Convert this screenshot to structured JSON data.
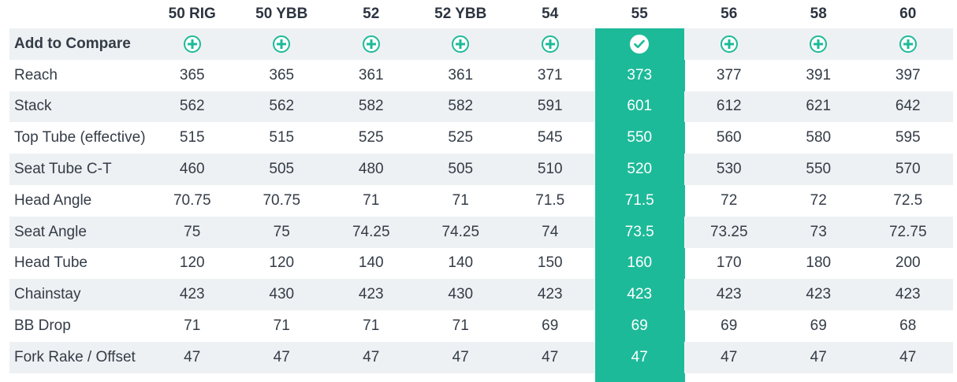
{
  "sizes": [
    "50 RIG",
    "50 YBB",
    "52",
    "52 YBB",
    "54",
    "55",
    "56",
    "58",
    "60"
  ],
  "selected_size": "55",
  "accent_color": "#1dba99",
  "compare": {
    "label": "Add to Compare",
    "add_icon": "plus-circle-icon",
    "selected_icon": "check-circle-icon"
  },
  "rows": [
    {
      "label": "Reach",
      "values": [
        "365",
        "365",
        "361",
        "361",
        "371",
        "373",
        "377",
        "391",
        "397"
      ]
    },
    {
      "label": "Stack",
      "values": [
        "562",
        "562",
        "582",
        "582",
        "591",
        "601",
        "612",
        "621",
        "642"
      ]
    },
    {
      "label": "Top Tube (effective)",
      "values": [
        "515",
        "515",
        "525",
        "525",
        "545",
        "550",
        "560",
        "580",
        "595"
      ]
    },
    {
      "label": "Seat Tube C-T",
      "values": [
        "460",
        "505",
        "480",
        "505",
        "510",
        "520",
        "530",
        "550",
        "570"
      ]
    },
    {
      "label": "Head Angle",
      "values": [
        "70.75",
        "70.75",
        "71",
        "71",
        "71.5",
        "71.5",
        "72",
        "72",
        "72.5"
      ]
    },
    {
      "label": "Seat Angle",
      "values": [
        "75",
        "75",
        "74.25",
        "74.25",
        "74",
        "73.5",
        "73.25",
        "73",
        "72.75"
      ]
    },
    {
      "label": "Head Tube",
      "values": [
        "120",
        "120",
        "140",
        "140",
        "150",
        "160",
        "170",
        "180",
        "200"
      ]
    },
    {
      "label": "Chainstay",
      "values": [
        "423",
        "430",
        "423",
        "430",
        "423",
        "423",
        "423",
        "423",
        "423"
      ]
    },
    {
      "label": "BB Drop",
      "values": [
        "71",
        "71",
        "71",
        "71",
        "69",
        "69",
        "69",
        "69",
        "68"
      ]
    },
    {
      "label": "Fork Rake / Offset",
      "values": [
        "47",
        "47",
        "47",
        "47",
        "47",
        "47",
        "47",
        "47",
        "47"
      ]
    }
  ]
}
